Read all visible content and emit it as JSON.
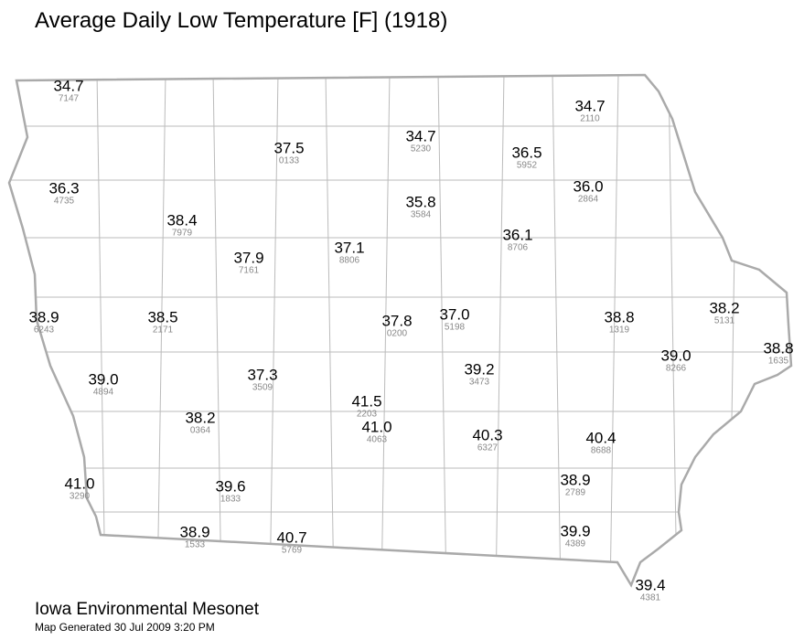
{
  "title": "Average Daily Low Temperature [F] (1918)",
  "stations": [
    {
      "value": "34.7",
      "id": "7147"
    },
    {
      "value": "37.5",
      "id": "0133"
    },
    {
      "value": "34.7",
      "id": "5230"
    },
    {
      "value": "36.5",
      "id": "5952"
    },
    {
      "value": "34.7",
      "id": "2110"
    },
    {
      "value": "36.3",
      "id": "4735"
    },
    {
      "value": "38.4",
      "id": "7979"
    },
    {
      "value": "35.8",
      "id": "3584"
    },
    {
      "value": "36.0",
      "id": "2864"
    },
    {
      "value": "37.9",
      "id": "7161"
    },
    {
      "value": "37.1",
      "id": "8806"
    },
    {
      "value": "36.1",
      "id": "8706"
    },
    {
      "value": "38.9",
      "id": "6243"
    },
    {
      "value": "38.5",
      "id": "2171"
    },
    {
      "value": "37.8",
      "id": "0200"
    },
    {
      "value": "37.0",
      "id": "5198"
    },
    {
      "value": "38.8",
      "id": "1319"
    },
    {
      "value": "38.2",
      "id": "5131"
    },
    {
      "value": "39.0",
      "id": "4894"
    },
    {
      "value": "37.3",
      "id": "3509"
    },
    {
      "value": "39.2",
      "id": "3473"
    },
    {
      "value": "39.0",
      "id": "8266"
    },
    {
      "value": "38.8",
      "id": "1635"
    },
    {
      "value": "41.5",
      "id": "2203"
    },
    {
      "value": "38.2",
      "id": "0364"
    },
    {
      "value": "41.0",
      "id": "4063"
    },
    {
      "value": "40.3",
      "id": "6327"
    },
    {
      "value": "40.4",
      "id": "8688"
    },
    {
      "value": "41.0",
      "id": "3290"
    },
    {
      "value": "39.6",
      "id": "1833"
    },
    {
      "value": "38.9",
      "id": "2789"
    },
    {
      "value": "38.9",
      "id": "1533"
    },
    {
      "value": "40.7",
      "id": "5769"
    },
    {
      "value": "39.9",
      "id": "4389"
    },
    {
      "value": "39.4",
      "id": "4381"
    }
  ],
  "footer": {
    "source": "Iowa Environmental Mesonet",
    "generated": "Map Generated 30 Jul 2009 3:20 PM"
  }
}
